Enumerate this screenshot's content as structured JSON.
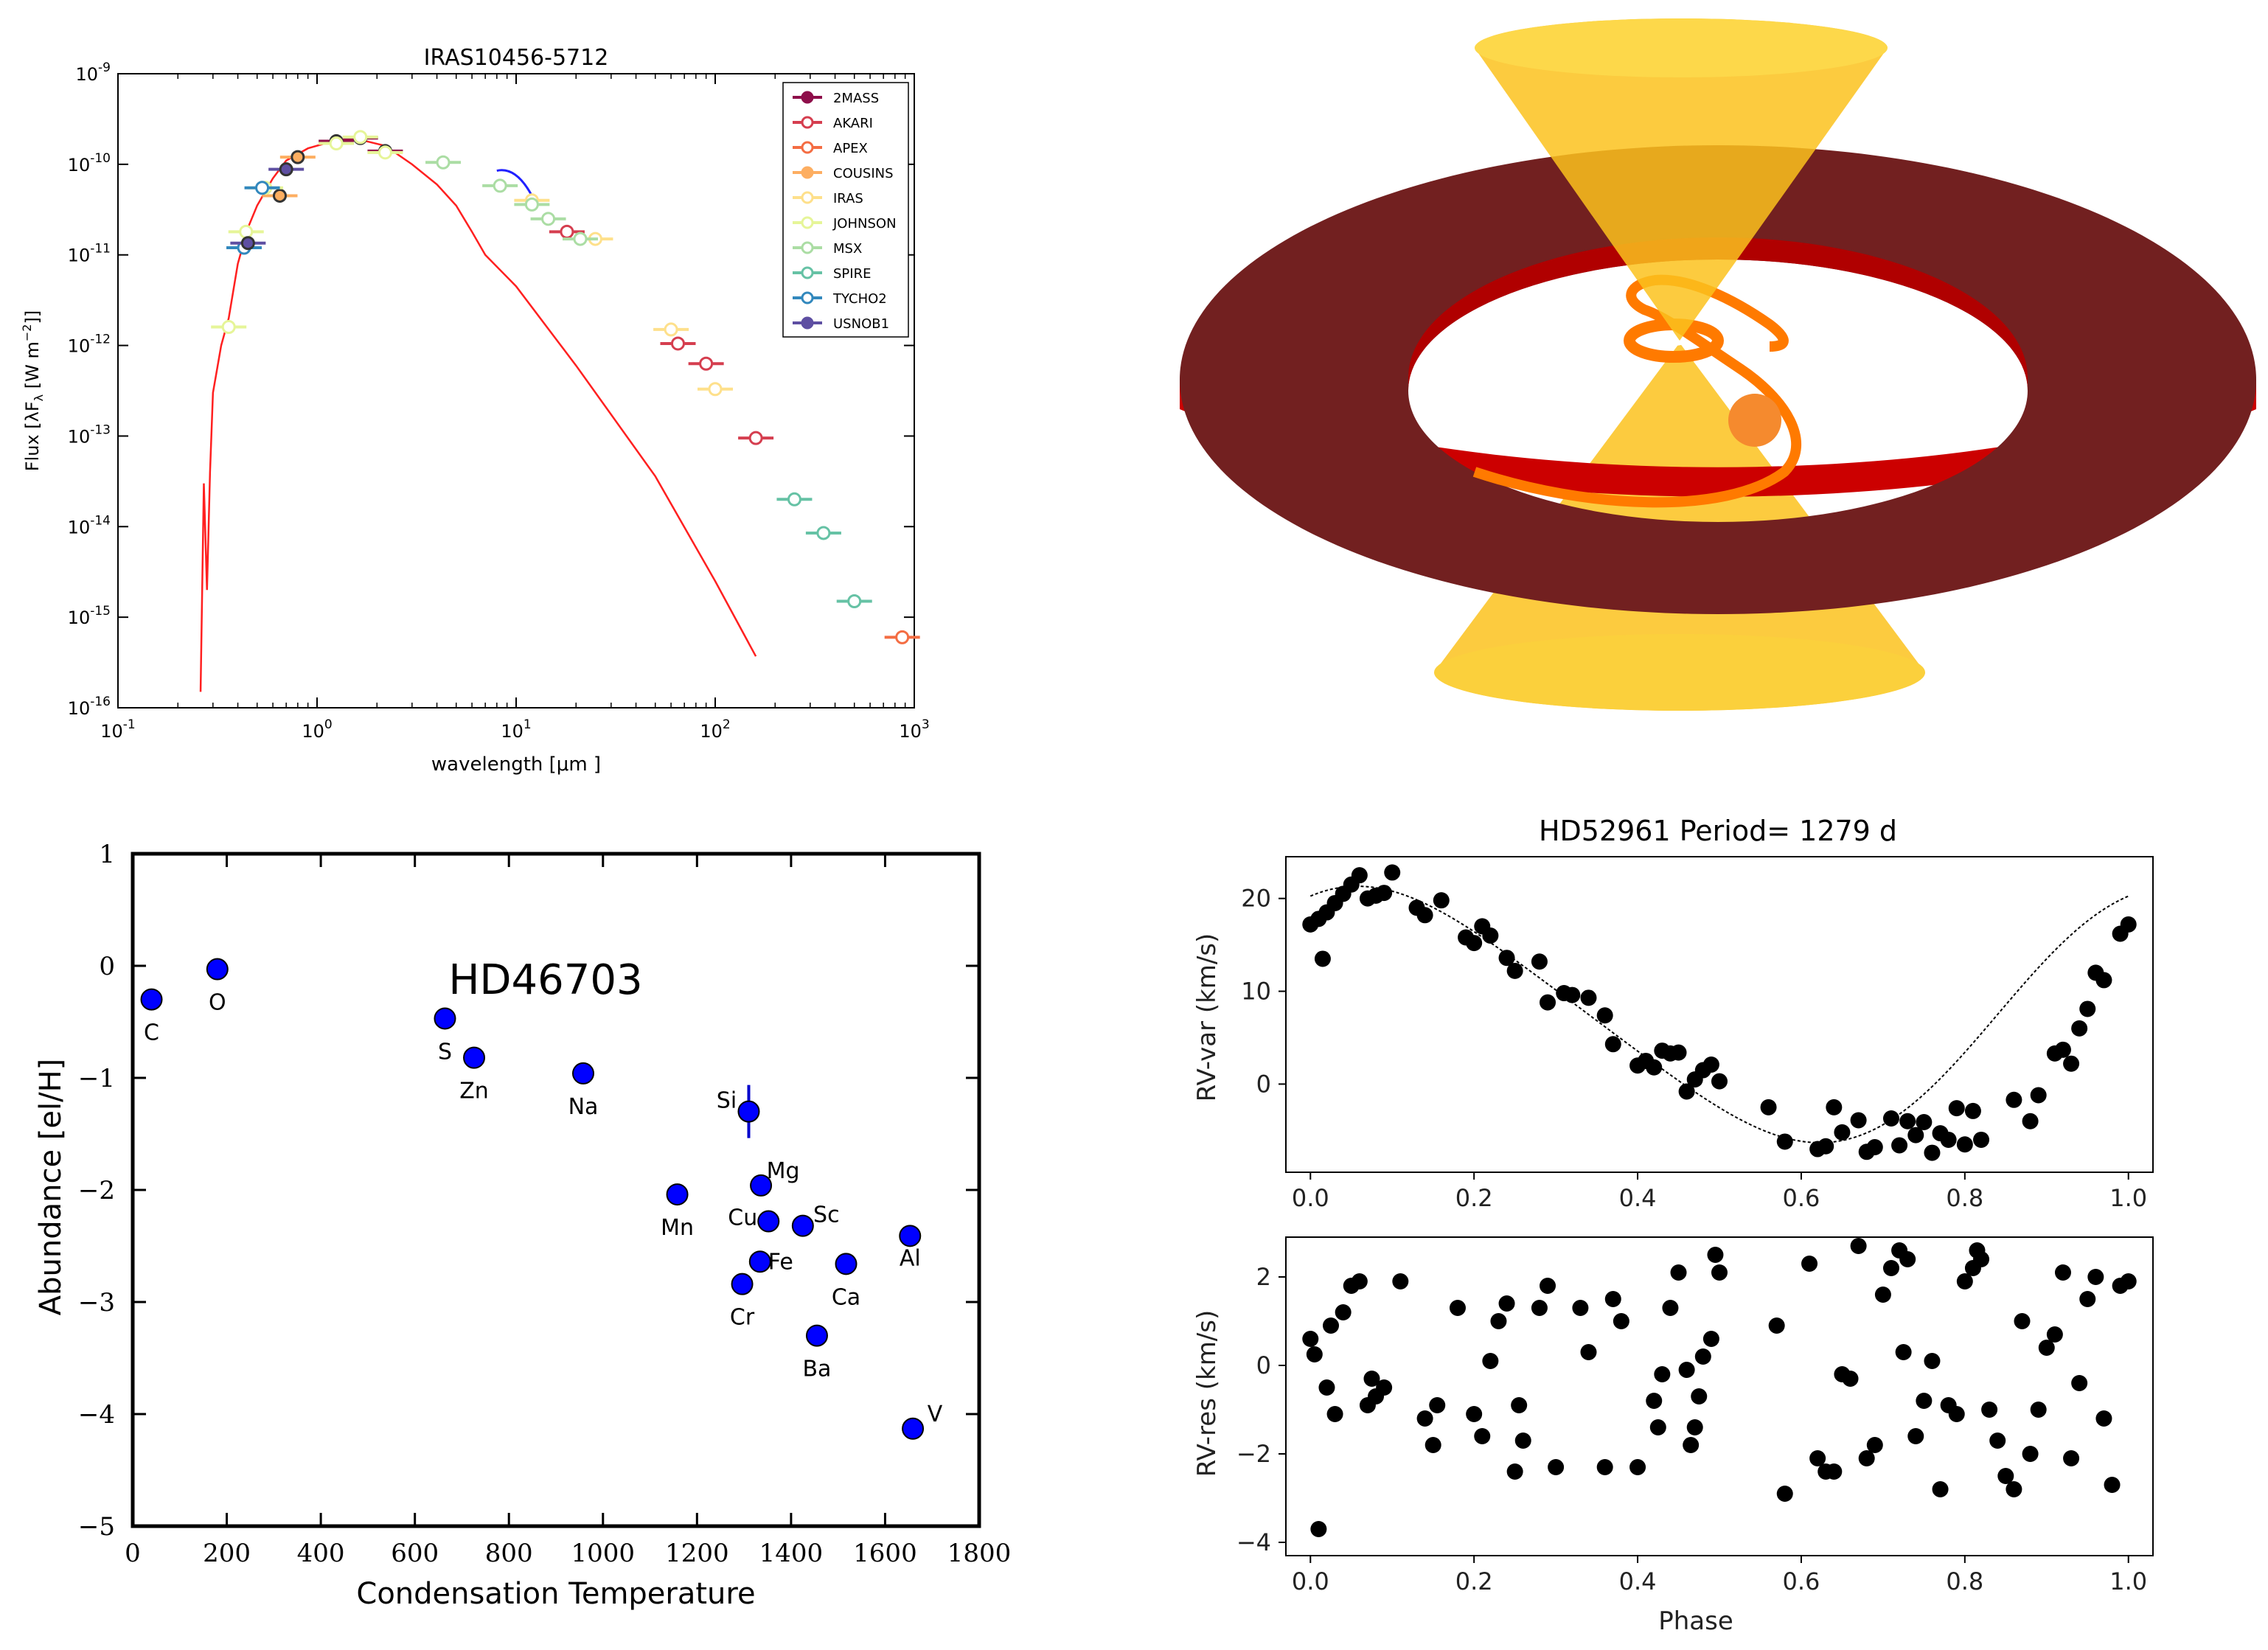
{
  "sed": {
    "title": "IRAS10456-5712",
    "xlabel": "wavelength [μm ]",
    "ylabel": "Flux [λF",
    "ylabel_sub": "λ",
    "ylabel_units": " [W  m",
    "ylabel_exp": "−2",
    "ylabel_end": "]]",
    "xticks": [
      {
        "base": "10",
        "exp": "-1"
      },
      {
        "base": "10",
        "exp": "0"
      },
      {
        "base": "10",
        "exp": "1"
      },
      {
        "base": "10",
        "exp": "2"
      },
      {
        "base": "10",
        "exp": "3"
      }
    ],
    "yticks": [
      {
        "base": "10",
        "exp": "-16"
      },
      {
        "base": "10",
        "exp": "-15"
      },
      {
        "base": "10",
        "exp": "-14"
      },
      {
        "base": "10",
        "exp": "-13"
      },
      {
        "base": "10",
        "exp": "-12"
      },
      {
        "base": "10",
        "exp": "-11"
      },
      {
        "base": "10",
        "exp": "-10"
      },
      {
        "base": "10",
        "exp": "-9"
      }
    ],
    "legend": [
      {
        "label": "2MASS",
        "color": "#8e0e4a",
        "marker": "filled"
      },
      {
        "label": "AKARI",
        "color": "#d53e4f",
        "marker": "open"
      },
      {
        "label": "APEX",
        "color": "#f46d43",
        "marker": "open"
      },
      {
        "label": "COUSINS",
        "color": "#fdae61",
        "marker": "filled"
      },
      {
        "label": "IRAS",
        "color": "#fee08b",
        "marker": "open"
      },
      {
        "label": "JOHNSON",
        "color": "#e6f598",
        "marker": "open"
      },
      {
        "label": "MSX",
        "color": "#abdda4",
        "marker": "open"
      },
      {
        "label": "SPIRE",
        "color": "#66c2a5",
        "marker": "open"
      },
      {
        "label": "TYCHO2",
        "color": "#3288bd",
        "marker": "open"
      },
      {
        "label": "USNOB1",
        "color": "#5e4fa2",
        "marker": "filled"
      }
    ]
  },
  "abund": {
    "title": "HD46703",
    "xlabel": "Condensation Temperature",
    "ylabel": "Abundance [el/H]",
    "xticks": [
      "0",
      "200",
      "400",
      "600",
      "800",
      "1000",
      "1200",
      "1400",
      "1600",
      "1800"
    ],
    "yticks": [
      "1",
      "0",
      "−1",
      "−2",
      "−3",
      "−4",
      "−5"
    ]
  },
  "rv": {
    "title": "HD52961 Period=  1279 d",
    "top_ylabel": "RV-var (km/s)",
    "bottom_ylabel": "RV-res (km/s)",
    "xlabel": "Phase",
    "xticks": [
      "0.0",
      "0.2",
      "0.4",
      "0.6",
      "0.8",
      "1.0"
    ],
    "top_yticks": [
      "20",
      "10",
      "0"
    ],
    "bottom_yticks": [
      "2",
      "0",
      "−2",
      "−4"
    ]
  },
  "chart_data": [
    {
      "type": "scatter",
      "title": "IRAS10456-5712",
      "xscale": "log",
      "yscale": "log",
      "xlim": [
        0.1,
        1000
      ],
      "ylim": [
        1e-16,
        1e-09
      ],
      "xlabel": "wavelength [μm ]",
      "ylabel": "Flux [λF_λ [W m^-2]]",
      "series": [
        {
          "name": "2MASS",
          "points": [
            [
              1.25,
              1.8e-10
            ],
            [
              1.65,
              1.95e-10
            ],
            [
              2.2,
              1.4e-10
            ]
          ]
        },
        {
          "name": "AKARI",
          "points": [
            [
              18,
              1.8e-11
            ],
            [
              65,
              1.05e-12
            ],
            [
              90,
              6.3e-13
            ],
            [
              160,
              9.5e-14
            ]
          ]
        },
        {
          "name": "APEX",
          "points": [
            [
              870,
              6e-16
            ]
          ]
        },
        {
          "name": "COUSINS",
          "points": [
            [
              0.65,
              4.5e-11
            ],
            [
              0.8,
              1.2e-10
            ]
          ]
        },
        {
          "name": "IRAS",
          "points": [
            [
              12,
              4e-11
            ],
            [
              25,
              1.5e-11
            ],
            [
              60,
              1.5e-12
            ],
            [
              100,
              3.3e-13
            ]
          ]
        },
        {
          "name": "JOHNSON",
          "points": [
            [
              0.36,
              1.6e-12
            ],
            [
              0.44,
              1.8e-11
            ],
            [
              0.55,
              5.5e-11
            ],
            [
              1.25,
              1.7e-10
            ],
            [
              1.65,
              2e-10
            ],
            [
              2.2,
              1.35e-10
            ]
          ]
        },
        {
          "name": "MSX",
          "points": [
            [
              4.3,
              1.05e-10
            ],
            [
              8.3,
              5.8e-11
            ],
            [
              12,
              3.6e-11
            ],
            [
              14.5,
              2.5e-11
            ],
            [
              21,
              1.5e-11
            ]
          ]
        },
        {
          "name": "SPIRE",
          "points": [
            [
              250,
              2e-14
            ],
            [
              350,
              8.5e-15
            ],
            [
              500,
              1.5e-15
            ]
          ]
        },
        {
          "name": "TYCHO2",
          "points": [
            [
              0.43,
              1.2e-11
            ],
            [
              0.53,
              5.5e-11
            ]
          ]
        },
        {
          "name": "USNOB1",
          "points": [
            [
              0.45,
              1.35e-11
            ],
            [
              0.7,
              8.8e-11
            ]
          ]
        }
      ]
    },
    {
      "type": "scatter",
      "title": "HD46703",
      "xlabel": "Condensation Temperature",
      "ylabel": "Abundance [el/H]",
      "xlim": [
        0,
        1800
      ],
      "ylim": [
        -5,
        1
      ],
      "points": [
        {
          "label": "C",
          "x": 40,
          "y": -0.3
        },
        {
          "label": "O",
          "x": 180,
          "y": -0.03
        },
        {
          "label": "S",
          "x": 664,
          "y": -0.47
        },
        {
          "label": "Zn",
          "x": 726,
          "y": -0.82
        },
        {
          "label": "Na",
          "x": 958,
          "y": -0.96
        },
        {
          "label": "Mn",
          "x": 1158,
          "y": -2.04
        },
        {
          "label": "Si",
          "x": 1310,
          "y": -1.3
        },
        {
          "label": "Mg",
          "x": 1336,
          "y": -1.96
        },
        {
          "label": "Cu",
          "x": 1352,
          "y": -2.28
        },
        {
          "label": "Sc",
          "x": 1425,
          "y": -2.32
        },
        {
          "label": "Fe",
          "x": 1334,
          "y": -2.64
        },
        {
          "label": "Cr",
          "x": 1296,
          "y": -2.84
        },
        {
          "label": "Ca",
          "x": 1517,
          "y": -2.66
        },
        {
          "label": "Ba",
          "x": 1455,
          "y": -3.3
        },
        {
          "label": "Al",
          "x": 1653,
          "y": -2.41
        },
        {
          "label": "V",
          "x": 1659,
          "y": -4.13
        }
      ]
    },
    {
      "type": "scatter",
      "title": "HD52961 Period=  1279 d",
      "panel": "top",
      "xlabel": "",
      "ylabel": "RV-var (km/s)",
      "xlim": [
        -0.03,
        1.03
      ],
      "ylim": [
        -9.5,
        24.5
      ],
      "model": "sinusoid",
      "points": [
        [
          0.0,
          17.2
        ],
        [
          0.01,
          17.8
        ],
        [
          0.015,
          13.5
        ],
        [
          0.02,
          18.5
        ],
        [
          0.03,
          19.5
        ],
        [
          0.04,
          20.5
        ],
        [
          0.05,
          21.5
        ],
        [
          0.06,
          22.5
        ],
        [
          0.07,
          20
        ],
        [
          0.08,
          20.3
        ],
        [
          0.09,
          20.6
        ],
        [
          0.1,
          22.8
        ],
        [
          0.13,
          19
        ],
        [
          0.14,
          18.2
        ],
        [
          0.16,
          19.8
        ],
        [
          0.19,
          15.8
        ],
        [
          0.2,
          15.2
        ],
        [
          0.21,
          17
        ],
        [
          0.22,
          16
        ],
        [
          0.24,
          13.6
        ],
        [
          0.25,
          12.2
        ],
        [
          0.28,
          13.2
        ],
        [
          0.29,
          8.8
        ],
        [
          0.31,
          9.8
        ],
        [
          0.32,
          9.6
        ],
        [
          0.34,
          9.3
        ],
        [
          0.36,
          7.4
        ],
        [
          0.37,
          4.3
        ],
        [
          0.4,
          2
        ],
        [
          0.41,
          2.5
        ],
        [
          0.42,
          1.8
        ],
        [
          0.43,
          3.6
        ],
        [
          0.44,
          3.3
        ],
        [
          0.45,
          3.4
        ],
        [
          0.46,
          -0.8
        ],
        [
          0.47,
          0.5
        ],
        [
          0.48,
          1.5
        ],
        [
          0.49,
          2.1
        ],
        [
          0.5,
          0.3
        ],
        [
          0.56,
          -2.5
        ],
        [
          0.58,
          -6.2
        ],
        [
          0.62,
          -7
        ],
        [
          0.63,
          -6.7
        ],
        [
          0.64,
          -2.5
        ],
        [
          0.65,
          -5.2
        ],
        [
          0.67,
          -3.9
        ],
        [
          0.68,
          -7.3
        ],
        [
          0.69,
          -6.8
        ],
        [
          0.71,
          -3.7
        ],
        [
          0.72,
          -6.6
        ],
        [
          0.73,
          -4
        ],
        [
          0.74,
          -5.5
        ],
        [
          0.75,
          -4.1
        ],
        [
          0.76,
          -7.4
        ],
        [
          0.77,
          -5.3
        ],
        [
          0.78,
          -6
        ],
        [
          0.79,
          -2.6
        ],
        [
          0.8,
          -6.5
        ],
        [
          0.81,
          -2.9
        ],
        [
          0.82,
          -6
        ],
        [
          0.86,
          -1.7
        ],
        [
          0.88,
          -4
        ],
        [
          0.89,
          -1.2
        ],
        [
          0.91,
          3.3
        ],
        [
          0.92,
          3.7
        ],
        [
          0.93,
          2.2
        ],
        [
          0.94,
          6
        ],
        [
          0.95,
          8.1
        ],
        [
          0.96,
          12
        ],
        [
          0.97,
          11.2
        ],
        [
          0.99,
          16.2
        ],
        [
          1.0,
          17.2
        ]
      ]
    },
    {
      "type": "scatter",
      "panel": "bottom",
      "xlabel": "Phase",
      "ylabel": "RV-res (km/s)",
      "xlim": [
        -0.03,
        1.03
      ],
      "ylim": [
        -4.3,
        2.9
      ],
      "points": [
        [
          0.0,
          0.6
        ],
        [
          0.005,
          0.25
        ],
        [
          0.01,
          -3.7
        ],
        [
          0.02,
          -0.5
        ],
        [
          0.025,
          0.9
        ],
        [
          0.03,
          -1.1
        ],
        [
          0.04,
          1.2
        ],
        [
          0.05,
          1.8
        ],
        [
          0.06,
          1.9
        ],
        [
          0.07,
          -0.9
        ],
        [
          0.075,
          -0.3
        ],
        [
          0.08,
          -0.7
        ],
        [
          0.09,
          -0.5
        ],
        [
          0.11,
          1.9
        ],
        [
          0.14,
          -1.2
        ],
        [
          0.15,
          -1.8
        ],
        [
          0.155,
          -0.9
        ],
        [
          0.18,
          1.3
        ],
        [
          0.2,
          -1.1
        ],
        [
          0.21,
          -1.6
        ],
        [
          0.22,
          0.1
        ],
        [
          0.23,
          1.0
        ],
        [
          0.24,
          1.4
        ],
        [
          0.25,
          -2.4
        ],
        [
          0.255,
          -0.9
        ],
        [
          0.26,
          -1.7
        ],
        [
          0.28,
          1.3
        ],
        [
          0.29,
          1.8
        ],
        [
          0.3,
          -2.3
        ],
        [
          0.33,
          1.3
        ],
        [
          0.34,
          0.3
        ],
        [
          0.36,
          -2.3
        ],
        [
          0.37,
          1.5
        ],
        [
          0.38,
          1.0
        ],
        [
          0.4,
          -2.3
        ],
        [
          0.42,
          -0.8
        ],
        [
          0.425,
          -1.4
        ],
        [
          0.43,
          -0.2
        ],
        [
          0.44,
          1.3
        ],
        [
          0.45,
          2.1
        ],
        [
          0.46,
          -0.1
        ],
        [
          0.465,
          -1.8
        ],
        [
          0.47,
          -1.4
        ],
        [
          0.475,
          -0.7
        ],
        [
          0.48,
          0.2
        ],
        [
          0.49,
          0.6
        ],
        [
          0.495,
          2.5
        ],
        [
          0.5,
          2.1
        ],
        [
          0.57,
          0.9
        ],
        [
          0.58,
          -2.9
        ],
        [
          0.61,
          2.3
        ],
        [
          0.62,
          -2.1
        ],
        [
          0.63,
          -2.4
        ],
        [
          0.64,
          -2.4
        ],
        [
          0.65,
          -0.2
        ],
        [
          0.66,
          -0.3
        ],
        [
          0.67,
          2.7
        ],
        [
          0.68,
          -2.1
        ],
        [
          0.69,
          -1.8
        ],
        [
          0.7,
          1.6
        ],
        [
          0.71,
          2.2
        ],
        [
          0.72,
          2.6
        ],
        [
          0.725,
          0.3
        ],
        [
          0.73,
          2.4
        ],
        [
          0.74,
          -1.6
        ],
        [
          0.75,
          -0.8
        ],
        [
          0.76,
          0.1
        ],
        [
          0.77,
          -2.8
        ],
        [
          0.78,
          -0.9
        ],
        [
          0.79,
          -1.1
        ],
        [
          0.8,
          1.9
        ],
        [
          0.81,
          2.2
        ],
        [
          0.815,
          2.6
        ],
        [
          0.82,
          2.4
        ],
        [
          0.83,
          -1.0
        ],
        [
          0.84,
          -1.7
        ],
        [
          0.85,
          -2.5
        ],
        [
          0.86,
          -2.8
        ],
        [
          0.87,
          1.0
        ],
        [
          0.88,
          -2.0
        ],
        [
          0.89,
          -1.0
        ],
        [
          0.9,
          0.4
        ],
        [
          0.91,
          0.7
        ],
        [
          0.92,
          2.1
        ],
        [
          0.93,
          -2.1
        ],
        [
          0.94,
          -0.4
        ],
        [
          0.95,
          1.5
        ],
        [
          0.96,
          2.0
        ],
        [
          0.97,
          -1.2
        ],
        [
          0.98,
          -2.7
        ],
        [
          0.99,
          1.8
        ],
        [
          1.0,
          1.9
        ]
      ]
    }
  ]
}
